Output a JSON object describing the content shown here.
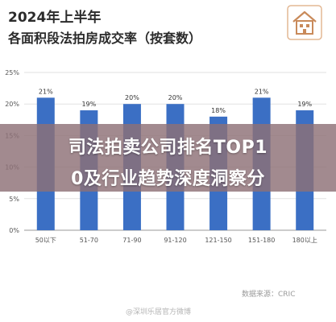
{
  "header": {
    "title_line1": "2024年上半年",
    "title_line2": "各面积段法拍房成交率（按套数）"
  },
  "banner": {
    "line1": "司法拍卖公司排名TOP1",
    "line2": "0及行业趋势深度洞察分"
  },
  "footer": {
    "source": "数据来源：CRIC",
    "watermark": "@深圳乐居官方微博"
  },
  "colors": {
    "bar": "#3b6fc4",
    "banner": "#8e7076",
    "axis_text": "#555555"
  },
  "chart_data": {
    "type": "bar",
    "title": "2024年上半年 各面积段法拍房成交率（按套数）",
    "categories": [
      "50以下",
      "51-70",
      "71-90",
      "91-120",
      "121-150",
      "151-180",
      "180以上"
    ],
    "values": [
      21,
      19,
      20,
      20,
      18,
      21,
      19
    ],
    "value_labels": [
      "21%",
      "19%",
      "20%",
      "20%",
      "18%",
      "21%",
      "19%"
    ],
    "yticks": [
      0,
      5,
      10,
      15,
      20,
      25
    ],
    "ytick_labels": [
      "0%",
      "5%",
      "10%",
      "15%",
      "20%",
      "25%"
    ],
    "ylim": [
      0,
      25
    ],
    "xlabel": "",
    "ylabel": "",
    "grid": true,
    "legend": "none"
  }
}
